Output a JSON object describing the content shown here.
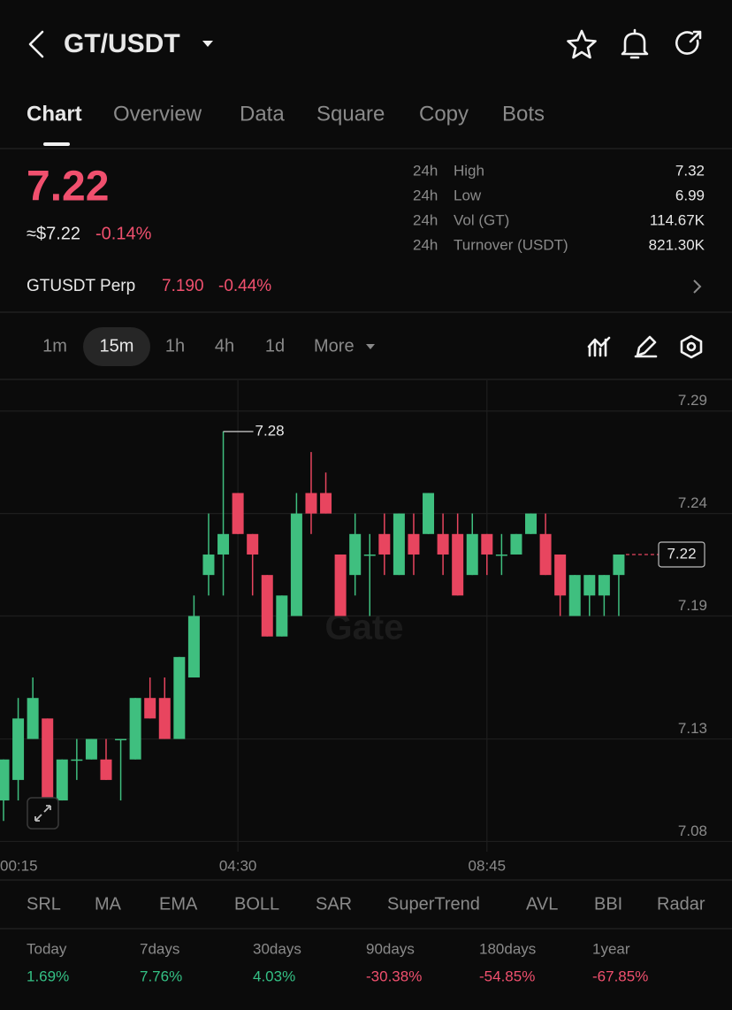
{
  "header": {
    "pair": "GT/USDT"
  },
  "tabs": [
    "Chart",
    "Overview",
    "Data",
    "Square",
    "Copy",
    "Bots"
  ],
  "ticker": {
    "price": "7.22",
    "usd_price": "≈$7.22",
    "change": "-0.14%",
    "stats": [
      {
        "period": "24h",
        "label": "High",
        "value": "7.32"
      },
      {
        "period": "24h",
        "label": "Low",
        "value": "6.99"
      },
      {
        "period": "24h",
        "label": "Vol (GT)",
        "value": "114.67K"
      },
      {
        "period": "24h",
        "label": "Turnover (USDT)",
        "value": "821.30K"
      }
    ]
  },
  "perp": {
    "name": "GTUSDT Perp",
    "price": "7.190",
    "change": "-0.44%"
  },
  "intervals": [
    "1m",
    "15m",
    "1h",
    "4h",
    "1d",
    "More"
  ],
  "chart_data": {
    "type": "candlestick",
    "categories": [
      "00:15",
      null,
      null,
      null,
      null,
      null,
      null,
      null,
      null,
      null,
      null,
      null,
      null,
      null,
      null,
      null,
      "04:30",
      null,
      null,
      null,
      null,
      null,
      null,
      null,
      null,
      null,
      null,
      null,
      null,
      null,
      null,
      null,
      null,
      "08:45",
      null,
      null,
      null,
      null,
      null,
      null,
      null,
      null,
      null
    ],
    "open": [
      7.1,
      7.11,
      7.13,
      7.14,
      7.1,
      7.12,
      7.12,
      7.12,
      7.13,
      7.12,
      7.15,
      7.15,
      7.13,
      7.16,
      7.21,
      7.22,
      7.25,
      7.23,
      7.21,
      7.18,
      7.19,
      7.25,
      7.25,
      7.22,
      7.21,
      7.22,
      7.23,
      7.21,
      7.23,
      7.23,
      7.23,
      7.23,
      7.21,
      7.23,
      7.22,
      7.22,
      7.23,
      7.23,
      7.22,
      7.19,
      7.2,
      7.2,
      7.21
    ],
    "high": [
      7.12,
      7.15,
      7.16,
      7.14,
      7.12,
      7.13,
      7.13,
      7.13,
      7.13,
      7.15,
      7.16,
      7.16,
      7.17,
      7.2,
      7.24,
      7.28,
      7.25,
      7.23,
      7.21,
      7.2,
      7.25,
      7.27,
      7.26,
      7.22,
      7.24,
      7.23,
      7.24,
      7.24,
      7.24,
      7.25,
      7.24,
      7.24,
      7.24,
      7.23,
      7.23,
      7.23,
      7.24,
      7.24,
      7.22,
      7.21,
      7.21,
      7.21,
      7.22
    ],
    "low": [
      7.09,
      7.1,
      7.13,
      7.1,
      7.1,
      7.11,
      7.12,
      7.11,
      7.1,
      7.12,
      7.14,
      7.13,
      7.13,
      7.16,
      7.2,
      7.2,
      7.23,
      7.2,
      7.18,
      7.18,
      7.19,
      7.23,
      7.24,
      7.19,
      7.2,
      7.19,
      7.21,
      7.21,
      7.21,
      7.23,
      7.21,
      7.2,
      7.21,
      7.21,
      7.21,
      7.22,
      7.23,
      7.21,
      7.19,
      7.19,
      7.19,
      7.19,
      7.19
    ],
    "close": [
      7.12,
      7.14,
      7.15,
      7.1,
      7.12,
      7.12,
      7.13,
      7.11,
      7.13,
      7.15,
      7.14,
      7.13,
      7.17,
      7.19,
      7.22,
      7.23,
      7.23,
      7.22,
      7.18,
      7.2,
      7.24,
      7.24,
      7.24,
      7.19,
      7.23,
      7.22,
      7.22,
      7.24,
      7.22,
      7.25,
      7.22,
      7.2,
      7.23,
      7.22,
      7.22,
      7.23,
      7.24,
      7.21,
      7.2,
      7.21,
      7.21,
      7.21,
      7.22
    ],
    "up_color": "#3fbf7f",
    "down_color": "#e8455f",
    "ylim": [
      7.075,
      7.305
    ],
    "yticks": [
      7.29,
      7.24,
      7.19,
      7.13,
      7.08
    ],
    "grid": true,
    "watermark": "Gate"
  },
  "indicators": [
    "SRL",
    "MA",
    "EMA",
    "BOLL",
    "SAR",
    "SuperTrend",
    "AVL",
    "BBI",
    "Radar"
  ],
  "performance": [
    {
      "label": "Today",
      "value": "1.69%"
    },
    {
      "label": "7days",
      "value": "7.76%"
    },
    {
      "label": "30days",
      "value": "4.03%"
    },
    {
      "label": "90days",
      "value": "-30.38%"
    },
    {
      "label": "180days",
      "value": "-54.85%"
    },
    {
      "label": "1year",
      "value": "-67.85%"
    }
  ]
}
